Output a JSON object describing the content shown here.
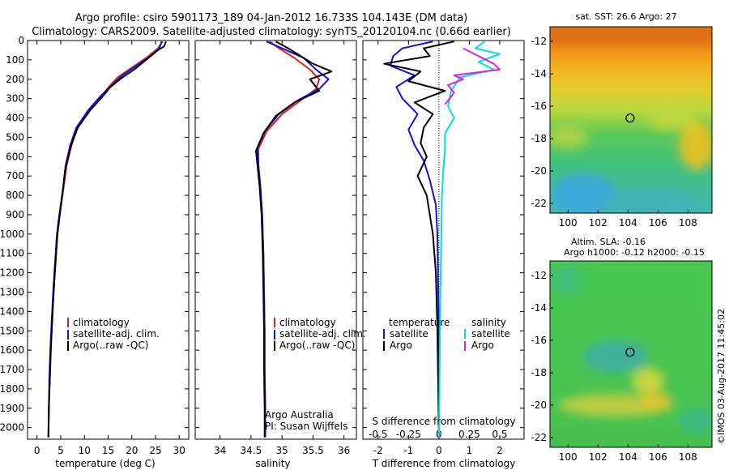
{
  "title": {
    "line1": "Argo profile: csiro 5901173_189 04-Jan-2012 16.733S 104.143E (DM data)",
    "line2": "Climatology: CARS2009. Satellite-adjusted climatology: synTS_20120104.nc (0.66d earlier)"
  },
  "colors": {
    "climatology": "#e02020",
    "satellite": "#1010e0",
    "argo": "#000000",
    "salinity_sat": "#00e0e0",
    "salinity_argo": "#e020e0"
  },
  "depth_axis": {
    "ticks": [
      0,
      100,
      200,
      300,
      400,
      500,
      600,
      700,
      800,
      900,
      1000,
      1100,
      1200,
      1300,
      1400,
      1500,
      1600,
      1700,
      1800,
      1900,
      2000
    ],
    "range": [
      0,
      2060
    ]
  },
  "chart_data": [
    {
      "type": "line",
      "id": "temperature",
      "xlabel": "temperature (deg C)",
      "xlim": [
        -2,
        32
      ],
      "xticks": [
        0,
        5,
        10,
        15,
        20,
        25,
        30
      ],
      "legend": [
        "climatology",
        "satellite-adj. clim.",
        "Argo(..raw -QC)"
      ],
      "series": [
        {
          "name": "climatology",
          "color": "#e02020",
          "points": [
            [
              26.5,
              5
            ],
            [
              25.5,
              40
            ],
            [
              23,
              90
            ],
            [
              20,
              140
            ],
            [
              17,
              190
            ],
            [
              15.5,
              230
            ],
            [
              13.5,
              290
            ],
            [
              11,
              360
            ],
            [
              8.5,
              450
            ],
            [
              7.3,
              540
            ],
            [
              6.2,
              650
            ],
            [
              5.5,
              780
            ],
            [
              4.8,
              900
            ],
            [
              4.3,
              1000
            ],
            [
              3.9,
              1150
            ],
            [
              3.5,
              1300
            ],
            [
              3.2,
              1450
            ],
            [
              2.9,
              1600
            ],
            [
              2.7,
              1750
            ],
            [
              2.5,
              1900
            ],
            [
              2.4,
              2050
            ]
          ]
        },
        {
          "name": "satellite",
          "color": "#1010e0",
          "points": [
            [
              26.3,
              5
            ],
            [
              25.8,
              40
            ],
            [
              24,
              80
            ],
            [
              21,
              130
            ],
            [
              18,
              180
            ],
            [
              15.8,
              230
            ],
            [
              13.3,
              290
            ],
            [
              10.8,
              360
            ],
            [
              8.3,
              450
            ],
            [
              7.0,
              540
            ],
            [
              6.0,
              650
            ],
            [
              5.4,
              780
            ],
            [
              4.7,
              900
            ],
            [
              4.2,
              1000
            ],
            [
              3.8,
              1150
            ],
            [
              3.4,
              1300
            ],
            [
              3.1,
              1450
            ],
            [
              2.8,
              1600
            ],
            [
              2.6,
              1750
            ],
            [
              2.5,
              1900
            ],
            [
              2.4,
              2050
            ]
          ]
        },
        {
          "name": "argo",
          "color": "#000000",
          "points": [
            [
              27.2,
              5
            ],
            [
              26.8,
              30
            ],
            [
              25.5,
              50
            ],
            [
              23.5,
              90
            ],
            [
              20.5,
              150
            ],
            [
              17.5,
              200
            ],
            [
              15.5,
              240
            ],
            [
              13.8,
              290
            ],
            [
              11.2,
              360
            ],
            [
              8.6,
              450
            ],
            [
              7.2,
              540
            ],
            [
              6.1,
              650
            ],
            [
              5.4,
              780
            ],
            [
              4.8,
              900
            ],
            [
              4.3,
              1000
            ],
            [
              3.9,
              1150
            ],
            [
              3.5,
              1300
            ],
            [
              3.2,
              1450
            ],
            [
              2.9,
              1600
            ],
            [
              2.7,
              1750
            ],
            [
              2.5,
              1900
            ],
            [
              2.4,
              2050
            ]
          ]
        }
      ]
    },
    {
      "type": "line",
      "id": "salinity",
      "xlabel": "salinity",
      "xlim": [
        33.6,
        36.2
      ],
      "xticks": [
        34,
        34.5,
        35,
        35.5,
        36
      ],
      "legend": [
        "climatology",
        "satellite-adj. clim.",
        "Argo(..raw -QC)"
      ],
      "note": [
        "Argo Australia",
        "PI: Susan Wijffels"
      ],
      "series": [
        {
          "name": "climatology",
          "color": "#e02020",
          "points": [
            [
              34.8,
              5
            ],
            [
              34.95,
              40
            ],
            [
              35.2,
              90
            ],
            [
              35.45,
              150
            ],
            [
              35.6,
              200
            ],
            [
              35.55,
              250
            ],
            [
              35.3,
              310
            ],
            [
              35.0,
              380
            ],
            [
              34.75,
              470
            ],
            [
              34.62,
              560
            ],
            [
              34.62,
              650
            ],
            [
              34.65,
              750
            ],
            [
              34.68,
              900
            ],
            [
              34.7,
              1100
            ],
            [
              34.71,
              1300
            ],
            [
              34.72,
              1500
            ],
            [
              34.72,
              1700
            ],
            [
              34.73,
              1900
            ],
            [
              34.73,
              2050
            ]
          ]
        },
        {
          "name": "satellite",
          "color": "#1010e0",
          "points": [
            [
              34.75,
              5
            ],
            [
              35.0,
              40
            ],
            [
              35.35,
              90
            ],
            [
              35.55,
              150
            ],
            [
              35.75,
              200
            ],
            [
              35.6,
              250
            ],
            [
              35.25,
              310
            ],
            [
              34.95,
              380
            ],
            [
              34.72,
              470
            ],
            [
              34.6,
              560
            ],
            [
              34.62,
              650
            ],
            [
              34.65,
              750
            ],
            [
              34.68,
              900
            ],
            [
              34.7,
              1100
            ],
            [
              34.71,
              1300
            ],
            [
              34.72,
              1500
            ],
            [
              34.72,
              1700
            ],
            [
              34.73,
              1900
            ],
            [
              34.73,
              2050
            ]
          ]
        },
        {
          "name": "argo",
          "color": "#000000",
          "points": [
            [
              34.9,
              5
            ],
            [
              35.1,
              40
            ],
            [
              35.3,
              80
            ],
            [
              35.5,
              120
            ],
            [
              35.8,
              160
            ],
            [
              35.45,
              200
            ],
            [
              35.6,
              260
            ],
            [
              35.2,
              320
            ],
            [
              34.9,
              390
            ],
            [
              34.7,
              480
            ],
            [
              34.58,
              570
            ],
            [
              34.61,
              660
            ],
            [
              34.64,
              760
            ],
            [
              34.67,
              900
            ],
            [
              34.69,
              1100
            ],
            [
              34.7,
              1300
            ],
            [
              34.71,
              1500
            ],
            [
              34.71,
              1700
            ],
            [
              34.72,
              1900
            ],
            [
              34.72,
              2050
            ]
          ]
        }
      ]
    },
    {
      "type": "line",
      "id": "difference",
      "xlabel": "T difference from climatology",
      "top_label": "S difference from climatology",
      "xlim": [
        -2.5,
        2.8
      ],
      "xticks": [
        -2,
        -1,
        0,
        1,
        2
      ],
      "s_ticks": [
        -0.5,
        -0.25,
        0,
        0.25,
        0.5
      ],
      "legend_headers": [
        "temperature",
        "salinity"
      ],
      "legend": [
        "satellite",
        "Argo",
        "satellite",
        "Argo"
      ],
      "series": [
        {
          "name": "temperature satellite",
          "color": "#1010e0",
          "points": [
            [
              -0.2,
              5
            ],
            [
              -1.2,
              40
            ],
            [
              -1.5,
              80
            ],
            [
              -1.6,
              130
            ],
            [
              -0.8,
              180
            ],
            [
              -1.4,
              240
            ],
            [
              -1.2,
              300
            ],
            [
              -0.7,
              380
            ],
            [
              -1.0,
              460
            ],
            [
              -0.8,
              540
            ],
            [
              -0.5,
              620
            ],
            [
              -0.3,
              720
            ],
            [
              -0.1,
              850
            ],
            [
              -0.05,
              1000
            ],
            [
              -0.02,
              1300
            ],
            [
              0,
              1600
            ],
            [
              0,
              2050
            ]
          ]
        },
        {
          "name": "temperature argo",
          "color": "#000000",
          "points": [
            [
              0.5,
              5
            ],
            [
              -0.5,
              40
            ],
            [
              -0.3,
              80
            ],
            [
              -1.8,
              120
            ],
            [
              -0.6,
              160
            ],
            [
              -1.0,
              210
            ],
            [
              0.2,
              260
            ],
            [
              -0.8,
              320
            ],
            [
              -0.2,
              380
            ],
            [
              -0.5,
              450
            ],
            [
              -0.6,
              530
            ],
            [
              -0.4,
              600
            ],
            [
              -0.7,
              700
            ],
            [
              -0.4,
              800
            ],
            [
              -0.3,
              900
            ],
            [
              -0.2,
              1000
            ],
            [
              -0.1,
              1200
            ],
            [
              -0.05,
              1500
            ],
            [
              0,
              2050
            ]
          ]
        },
        {
          "name": "salinity satellite",
          "color": "#00e0e0",
          "points": [
            [
              1.5,
              5
            ],
            [
              1.2,
              40
            ],
            [
              2.0,
              70
            ],
            [
              1.3,
              110
            ],
            [
              1.8,
              150
            ],
            [
              0.7,
              190
            ],
            [
              0.4,
              260
            ],
            [
              0.3,
              340
            ],
            [
              0.5,
              400
            ],
            [
              0.2,
              480
            ],
            [
              0.2,
              560
            ],
            [
              0.15,
              660
            ],
            [
              0.1,
              800
            ],
            [
              0.08,
              1000
            ],
            [
              0.05,
              1300
            ],
            [
              0.03,
              1600
            ],
            [
              0,
              2050
            ]
          ]
        },
        {
          "name": "salinity argo",
          "color": "#e020e0",
          "points": [
            [
              0.8,
              40
            ],
            [
              1.3,
              80
            ],
            [
              1.8,
              120
            ],
            [
              2.0,
              150
            ],
            [
              0.5,
              180
            ],
            [
              0.8,
              200
            ],
            [
              0.3,
              230
            ],
            [
              0.5,
              270
            ],
            [
              0.2,
              330
            ]
          ]
        }
      ]
    },
    {
      "type": "heatmap",
      "id": "sst_map",
      "title": "sat. SST: 26.6  Argo: 27",
      "xticks": [
        100,
        102,
        104,
        106,
        108
      ],
      "yticks": [
        -12,
        -14,
        -16,
        -18,
        -20,
        -22
      ],
      "xlim": [
        98.8,
        109.6
      ],
      "ylim": [
        -22.6,
        -11.1
      ],
      "marker": [
        104.143,
        -16.733
      ]
    },
    {
      "type": "heatmap",
      "id": "sla_map",
      "title_line1": "Altim. SLA: -0.16",
      "title_line2": "Argo h1000: -0.12 h2000: -0.15",
      "xticks": [
        100,
        102,
        104,
        106,
        108
      ],
      "yticks": [
        -12,
        -14,
        -16,
        -18,
        -20,
        -22
      ],
      "xlim": [
        98.8,
        109.6
      ],
      "ylim": [
        -22.6,
        -11.1
      ],
      "marker": [
        104.143,
        -16.733
      ]
    }
  ],
  "stamp": "©IMOS 03-Aug-2017 11:45:02"
}
